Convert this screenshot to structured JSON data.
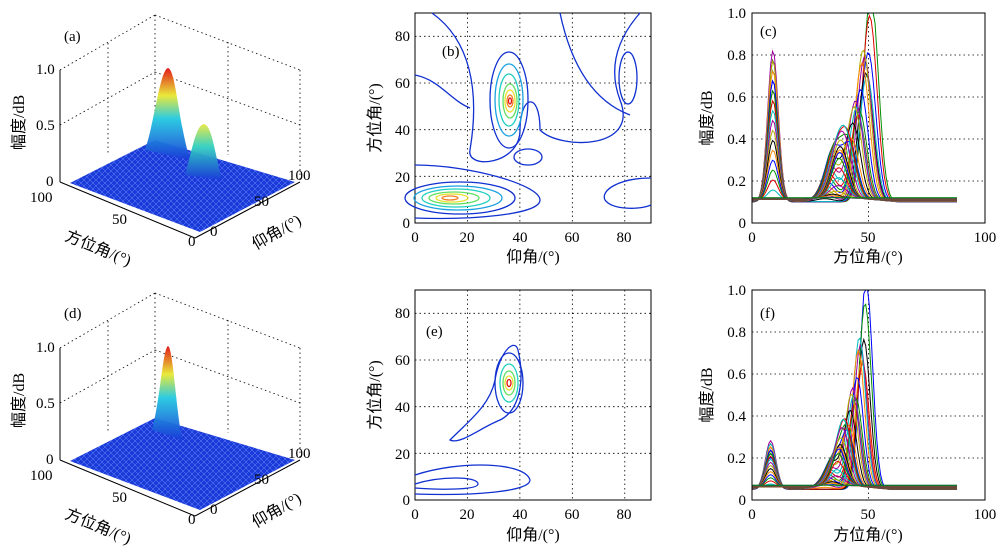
{
  "panels": {
    "a": {
      "label": "(a)"
    },
    "b": {
      "label": "(b)"
    },
    "c": {
      "label": "(c)"
    },
    "d": {
      "label": "(d)"
    },
    "e": {
      "label": "(e)"
    },
    "f": {
      "label": "(f)"
    }
  },
  "labels": {
    "amplitude": "幅度/dB",
    "azimuth": "方位角/(°)",
    "elevation": "仰角/(°)"
  },
  "colors": {
    "contour_outer": "#1030d0",
    "surface_base": "#1a3bd8",
    "peak": "#e01010"
  },
  "chart_data": [
    {
      "panel": "a",
      "type": "surface",
      "xlabel": "方位角/(°)",
      "ylabel": "仰角/(°)",
      "zlabel": "幅度/dB",
      "x_ticks": [
        "100",
        "50",
        "0"
      ],
      "y_ticks": [
        "0",
        "50",
        "100"
      ],
      "z_ticks": [
        "0",
        "0.5",
        "1.0"
      ],
      "peaks": [
        {
          "azimuth": 50,
          "elevation": 35,
          "amplitude": 1.0
        },
        {
          "azimuth": 10,
          "elevation": 20,
          "amplitude": 0.7
        }
      ]
    },
    {
      "panel": "b",
      "type": "contour",
      "xlabel": "仰角/(°)",
      "ylabel": "方位角/(°)",
      "xlim": [
        0,
        90
      ],
      "ylim": [
        0,
        90
      ],
      "x_ticks": [
        0,
        20,
        40,
        60,
        80
      ],
      "y_ticks": [
        0,
        20,
        40,
        60,
        80
      ],
      "peaks": [
        {
          "elevation": 36,
          "azimuth": 50
        },
        {
          "elevation": 15,
          "azimuth": 10
        }
      ]
    },
    {
      "panel": "c",
      "type": "line",
      "xlabel": "方位角/(°)",
      "ylabel": "幅度/dB",
      "xlim": [
        0,
        100
      ],
      "ylim": [
        0,
        1.0
      ],
      "x_ticks": [
        0,
        50,
        100
      ],
      "y_ticks": [
        0,
        0.2,
        0.4,
        0.6,
        0.8,
        1.0
      ],
      "peak_envelope": [
        {
          "x": 9,
          "y": 0.72
        },
        {
          "x": 30,
          "y": 0.25
        },
        {
          "x": 50,
          "y": 1.0
        }
      ],
      "series_colors": [
        "#009000",
        "#e00000",
        "#0000ff",
        "#00bbbb",
        "#000000",
        "#a000a0",
        "#b0b000"
      ]
    },
    {
      "panel": "d",
      "type": "surface",
      "xlabel": "方位角/(°)",
      "ylabel": "仰角/(°)",
      "zlabel": "幅度/dB",
      "x_ticks": [
        "100",
        "50",
        "0"
      ],
      "y_ticks": [
        "0",
        "50",
        "100"
      ],
      "z_ticks": [
        "0",
        "0.5",
        "1.0"
      ],
      "peaks": [
        {
          "azimuth": 50,
          "elevation": 35,
          "amplitude": 1.0
        }
      ]
    },
    {
      "panel": "e",
      "type": "contour",
      "xlabel": "仰角/(°)",
      "ylabel": "方位角/(°)",
      "xlim": [
        0,
        90
      ],
      "ylim": [
        0,
        90
      ],
      "x_ticks": [
        0,
        20,
        40,
        60,
        80
      ],
      "y_ticks": [
        0,
        20,
        40,
        60,
        80
      ],
      "peaks": [
        {
          "elevation": 36,
          "azimuth": 50
        }
      ]
    },
    {
      "panel": "f",
      "type": "line",
      "xlabel": "方位角/(°)",
      "ylabel": "幅度/dB",
      "xlim": [
        0,
        100
      ],
      "ylim": [
        0,
        1.0
      ],
      "x_ticks": [
        0,
        50,
        100
      ],
      "y_ticks": [
        0,
        0.2,
        0.4,
        0.6,
        0.8,
        1.0
      ],
      "peak_envelope": [
        {
          "x": 8,
          "y": 0.23
        },
        {
          "x": 30,
          "y": 0.15
        },
        {
          "x": 48,
          "y": 1.0
        }
      ],
      "series_colors": [
        "#0000ff",
        "#009000",
        "#000000",
        "#e00000",
        "#ff8800",
        "#a000a0",
        "#00bbbb"
      ]
    }
  ]
}
